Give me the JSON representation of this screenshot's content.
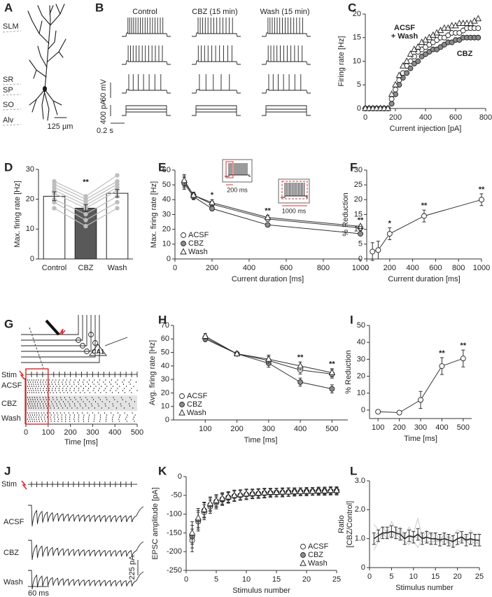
{
  "neuron": {
    "label": "A",
    "layers": [
      "SLM",
      "SR",
      "SP",
      "SO",
      "Alv"
    ],
    "scale": "125 µm"
  },
  "traces": {
    "label": "B",
    "conditions": [
      "Control",
      "CBZ (15 min)",
      "Wash (15 min)"
    ],
    "scale_voltage": "60 mV",
    "scale_current": "400 pA",
    "scale_time": "0.2 s"
  },
  "raster": {
    "label": "G",
    "stim": "Stim",
    "region": "CA1",
    "rows": [
      "ACSF",
      "CBZ",
      "Wash"
    ],
    "xlabel": "Time [ms]",
    "xlim": [
      0,
      500
    ],
    "xticks": [
      0,
      100,
      200,
      300,
      400,
      500
    ]
  },
  "epsc": {
    "label": "J",
    "stim": "Stim",
    "rows": [
      "ACSF",
      "CBZ",
      "Wash"
    ],
    "scale_current": "225 pA",
    "scale_time": "60 ms"
  },
  "chart_data": [
    {
      "label": "C",
      "type": "scatter",
      "xlabel": "Current injection [pA]",
      "ylabel": "Firing rate [Hz]",
      "xlim": [
        0,
        800
      ],
      "ylim": [
        0,
        20
      ],
      "xticks": [
        0,
        200,
        400,
        600,
        800
      ],
      "yticks": [
        0,
        5,
        10,
        15,
        20
      ],
      "x": [
        0,
        25,
        50,
        75,
        100,
        125,
        150,
        175,
        200,
        225,
        250,
        275,
        300,
        325,
        350,
        375,
        400,
        425,
        450,
        475,
        500,
        525,
        550,
        575,
        600,
        625,
        650,
        675,
        700,
        725,
        750
      ],
      "series": [
        {
          "marker": "circle-open",
          "color": "#ffffff",
          "values": [
            0,
            0,
            0,
            0,
            0,
            0,
            0,
            2,
            4,
            6,
            7.5,
            9,
            10,
            11,
            12,
            12.5,
            13,
            13.5,
            14,
            14.5,
            15,
            15,
            15.5,
            16,
            16,
            16,
            16.5,
            17,
            17,
            17,
            17
          ]
        },
        {
          "marker": "circle-filled",
          "color": "#8c8c8c",
          "values": [
            0,
            0,
            0,
            0,
            0,
            0,
            0,
            1,
            3,
            5,
            6.5,
            7.5,
            8.5,
            9.5,
            10,
            11,
            11.5,
            12,
            12.5,
            12.5,
            13,
            13.5,
            14,
            14,
            14.5,
            14.5,
            15,
            15,
            15,
            15,
            15
          ]
        },
        {
          "marker": "triangle",
          "color": "#ffffff",
          "values": [
            0,
            0,
            0,
            0,
            0,
            0,
            0,
            3,
            5,
            7,
            9,
            10,
            11.5,
            12.5,
            13,
            14,
            14.5,
            15,
            15.5,
            16,
            16.5,
            17,
            17,
            17.5,
            17.5,
            18,
            18,
            18,
            18,
            18.5,
            19
          ]
        }
      ],
      "annotations": [
        {
          "text": "ACSF"
        },
        {
          "text": "+ Wash"
        },
        {
          "text": "CBZ"
        }
      ]
    },
    {
      "label": "D",
      "type": "bar",
      "ylabel": "Max. firing rate [Hz]",
      "categories": [
        "Control",
        "CBZ",
        "Wash"
      ],
      "values": [
        21,
        17,
        22
      ],
      "errors": [
        1.5,
        1.2,
        1.3
      ],
      "colors": [
        "#ffffff",
        "#595959",
        "#ffffff"
      ],
      "ylim": [
        0,
        30
      ],
      "yticks": [
        0,
        10,
        20,
        30
      ],
      "paired": [
        {
          "color": "#bdbdbd",
          "values": [
            26,
            21,
            28
          ]
        },
        {
          "color": "#bdbdbd",
          "values": [
            25,
            20,
            26
          ]
        },
        {
          "color": "#bdbdbd",
          "values": [
            24,
            19,
            25
          ]
        },
        {
          "color": "#bdbdbd",
          "values": [
            23,
            18,
            24
          ]
        },
        {
          "color": "#bdbdbd",
          "values": [
            22,
            17,
            23
          ]
        },
        {
          "color": "#bdbdbd",
          "values": [
            20,
            15,
            21
          ]
        },
        {
          "color": "#bdbdbd",
          "values": [
            19,
            13,
            19
          ]
        },
        {
          "color": "#bdbdbd",
          "values": [
            17,
            11,
            17
          ]
        }
      ],
      "annotations": [
        {
          "text": "**",
          "at": "CBZ"
        }
      ]
    },
    {
      "label": "E",
      "type": "line",
      "xlabel": "Current duration [ms]",
      "ylabel": "Max. firing rate [Hz]",
      "xlim": [
        0,
        1000
      ],
      "ylim": [
        0,
        60
      ],
      "xticks": [
        0,
        200,
        400,
        600,
        800,
        1000
      ],
      "yticks": [
        0,
        10,
        20,
        30,
        40,
        50,
        60
      ],
      "x": [
        50,
        100,
        200,
        500,
        1000
      ],
      "legend": "bottom-left",
      "series": [
        {
          "name": "ACSF",
          "marker": "circle-open",
          "color": "#ffffff",
          "values": [
            52,
            43,
            37,
            27,
            21
          ],
          "errors": [
            4,
            2,
            2,
            1.5,
            1
          ]
        },
        {
          "name": "CBZ",
          "marker": "circle-filled",
          "color": "#8c8c8c",
          "values": [
            51,
            42,
            34,
            23,
            17
          ],
          "errors": [
            4,
            2,
            1.5,
            1,
            1
          ]
        },
        {
          "name": "Wash",
          "marker": "triangle",
          "color": "#ffffff",
          "values": [
            53,
            43,
            38,
            28,
            22
          ],
          "errors": [
            4,
            2,
            2,
            1.5,
            1
          ]
        }
      ],
      "annotations": [
        {
          "text": "*",
          "at": 200
        },
        {
          "text": "**",
          "at": 500
        },
        {
          "text": "**",
          "at": 1000
        }
      ],
      "insets": [
        "200 ms",
        "1000 ms"
      ]
    },
    {
      "label": "F",
      "type": "line",
      "xlabel": "Current duration [ms]",
      "ylabel": "% Reduction",
      "xlim": [
        0,
        1000
      ],
      "ylim": [
        0,
        30
      ],
      "xticks": [
        0,
        200,
        400,
        600,
        800,
        1000
      ],
      "yticks": [
        0,
        5,
        10,
        15,
        20,
        25,
        30
      ],
      "x": [
        50,
        100,
        200,
        500,
        1000
      ],
      "series": [
        {
          "marker": "circle-open",
          "color": "#ffffff",
          "values": [
            2.5,
            3,
            8.5,
            14.5,
            20
          ],
          "errors": [
            3,
            3,
            2,
            2,
            2
          ]
        }
      ],
      "annotations": [
        {
          "text": "*",
          "at": 200
        },
        {
          "text": "**",
          "at": 500
        },
        {
          "text": "**",
          "at": 1000
        }
      ]
    },
    {
      "label": "H",
      "type": "line",
      "xlabel": "Time [ms]",
      "ylabel": "Avg. firing rate [Hz]",
      "xlim": [
        0,
        550
      ],
      "ylim": [
        0,
        70
      ],
      "xticks": [
        100,
        200,
        300,
        400,
        500
      ],
      "yticks": [
        0,
        10,
        20,
        30,
        40,
        50,
        60,
        70
      ],
      "x": [
        100,
        200,
        300,
        400,
        500
      ],
      "legend": "bottom-left",
      "series": [
        {
          "name": "ACSF",
          "marker": "circle-open",
          "color": "#ffffff",
          "values": [
            61,
            49,
            44,
            37,
            34
          ],
          "errors": [
            2,
            1,
            3,
            3,
            3
          ]
        },
        {
          "name": "CBZ",
          "marker": "circle-filled",
          "color": "#8c8c8c",
          "values": [
            60,
            49,
            42,
            28,
            23
          ],
          "errors": [
            2,
            1,
            3,
            3,
            3
          ]
        },
        {
          "name": "Wash",
          "marker": "triangle",
          "color": "#ffffff",
          "values": [
            62,
            49,
            45,
            40,
            35
          ],
          "errors": [
            2,
            1,
            3,
            3,
            3
          ]
        }
      ],
      "annotations": [
        {
          "text": "**",
          "at": 400
        },
        {
          "text": "**",
          "at": 500
        }
      ]
    },
    {
      "label": "I",
      "type": "line",
      "xlabel": "Time [ms]",
      "ylabel": "% Reduction",
      "xlim": [
        60,
        540
      ],
      "ylim": [
        -5,
        50
      ],
      "xticks": [
        100,
        200,
        300,
        400,
        500
      ],
      "yticks": [
        0,
        10,
        20,
        30,
        40,
        50
      ],
      "x": [
        100,
        200,
        300,
        400,
        500
      ],
      "series": [
        {
          "marker": "circle-open",
          "color": "#ffffff",
          "values": [
            -1,
            -1.5,
            6,
            26,
            30.5
          ],
          "errors": [
            1,
            1,
            5,
            5,
            5
          ]
        }
      ],
      "annotations": [
        {
          "text": "**",
          "at": 400
        },
        {
          "text": "**",
          "at": 500
        }
      ]
    },
    {
      "label": "K",
      "type": "scatter",
      "xlabel": "Stimulus number",
      "ylabel": "EPSC amplitude [pA]",
      "xlim": [
        0,
        25
      ],
      "ylim": [
        -250,
        0
      ],
      "xticks": [
        0,
        5,
        10,
        15,
        20,
        25
      ],
      "yticks": [
        -250,
        -200,
        -150,
        -100,
        -50,
        0
      ],
      "x": [
        1,
        2,
        3,
        4,
        5,
        6,
        7,
        8,
        9,
        10,
        11,
        12,
        13,
        14,
        15,
        16,
        17,
        18,
        19,
        20,
        21,
        22,
        23,
        24,
        25
      ],
      "legend": "bottom-right",
      "series": [
        {
          "name": "ACSF",
          "marker": "circle-open",
          "color": "#ffffff",
          "values": [
            -170,
            -120,
            -95,
            -80,
            -70,
            -62,
            -57,
            -52,
            -50,
            -48,
            -46,
            -45,
            -44,
            -43,
            -42,
            -42,
            -41,
            -40,
            -40,
            -39,
            -39,
            -38,
            -38,
            -38,
            -37
          ],
          "errors": [
            30,
            25,
            20,
            18,
            16,
            15,
            14,
            14,
            13,
            13,
            12,
            12,
            12,
            11,
            11,
            11,
            11,
            10,
            10,
            10,
            10,
            10,
            10,
            10,
            10
          ]
        },
        {
          "name": "CBZ",
          "marker": "circle-filled",
          "color": "#8c8c8c",
          "values": [
            -160,
            -115,
            -90,
            -75,
            -66,
            -60,
            -55,
            -52,
            -50,
            -48,
            -47,
            -46,
            -45,
            -44,
            -43,
            -43,
            -42,
            -42,
            -41,
            -41,
            -40,
            -40,
            -40,
            -39,
            -39
          ],
          "errors": [
            30,
            25,
            20,
            18,
            16,
            15,
            14,
            14,
            13,
            13,
            12,
            12,
            12,
            11,
            11,
            11,
            11,
            10,
            10,
            10,
            10,
            10,
            10,
            10,
            10
          ]
        },
        {
          "name": "Wash",
          "marker": "triangle",
          "color": "#ffffff",
          "values": [
            -150,
            -110,
            -88,
            -72,
            -64,
            -58,
            -54,
            -50,
            -48,
            -46,
            -45,
            -44,
            -43,
            -42,
            -42,
            -41,
            -41,
            -40,
            -40,
            -39,
            -39,
            -38,
            -38,
            -37,
            -37
          ],
          "errors": [
            30,
            25,
            20,
            18,
            16,
            15,
            14,
            14,
            13,
            13,
            12,
            12,
            12,
            11,
            11,
            11,
            11,
            10,
            10,
            10,
            10,
            10,
            10,
            10,
            10
          ]
        }
      ]
    },
    {
      "label": "L",
      "type": "line",
      "xlabel": "Stimulus number",
      "ylabel": [
        "Ratio",
        "[CBZ/Control]"
      ],
      "xlim": [
        0,
        25
      ],
      "ylim": [
        0,
        3
      ],
      "xticks": [
        0,
        5,
        10,
        15,
        20,
        25
      ],
      "yticks": [
        0,
        {
          "value": 1,
          "label": "1.0"
        },
        {
          "value": 2,
          "label": "2.0"
        },
        {
          "value": 3,
          "label": "3.0"
        }
      ],
      "x": [
        1,
        2,
        3,
        4,
        5,
        6,
        7,
        8,
        9,
        10,
        11,
        12,
        13,
        14,
        15,
        16,
        17,
        18,
        19,
        20,
        21,
        22,
        23,
        24,
        25
      ],
      "series": [
        {
          "marker": "none",
          "color": "#c8c8c8",
          "values": [
            1.5,
            1.3,
            1.4,
            1.2,
            1.6,
            1.3,
            1.2,
            1.1,
            1.4,
            1.2,
            1.7,
            1.0,
            1.3,
            1.1,
            1.2,
            0.9,
            1.2,
            1.0,
            1.1,
            1.3,
            1.2,
            1.0,
            1.3,
            1.1,
            1.2
          ]
        },
        {
          "marker": "none",
          "color": "#c8c8c8",
          "values": [
            0.8,
            1.0,
            1.1,
            1.3,
            1.0,
            1.2,
            1.0,
            0.9,
            0.8,
            1.0,
            1.2,
            1.1,
            0.9,
            0.8,
            1.0,
            1.0,
            0.8,
            0.9,
            0.7,
            0.8,
            1.0,
            0.9,
            0.8,
            0.9,
            0.8
          ]
        },
        {
          "marker": "none",
          "color": "#c8c8c8",
          "values": [
            0.6,
            0.9,
            1.2,
            1.0,
            1.2,
            1.3,
            1.4,
            1.0,
            1.1,
            0.9,
            0.7,
            1.0,
            1.1,
            1.2,
            0.9,
            1.0,
            1.1,
            0.8,
            0.9,
            1.0,
            1.1,
            0.9,
            1.0,
            0.8,
            0.9
          ]
        },
        {
          "marker": "none",
          "color": "#c8c8c8",
          "values": [
            1.1,
            1.2,
            1.1,
            1.3,
            1.2,
            1.0,
            1.0,
            1.0,
            1.1,
            1.1,
            1.0,
            0.9,
            0.9,
            0.9,
            0.9,
            0.9,
            0.9,
            1.1,
            0.9,
            0.9,
            0.9,
            1.0,
            0.9,
            1.0,
            0.9
          ]
        },
        {
          "marker": "none",
          "color": "#1a1a1a",
          "values": [
            1.0,
            1.1,
            1.2,
            1.2,
            1.25,
            1.2,
            1.15,
            1.0,
            1.1,
            1.05,
            1.15,
            1.0,
            1.05,
            1.0,
            1.0,
            0.95,
            1.0,
            0.95,
            0.9,
            1.0,
            1.05,
            0.95,
            1.0,
            0.95,
            0.95
          ],
          "errors": [
            0.2,
            0.2,
            0.2,
            0.2,
            0.2,
            0.2,
            0.2,
            0.2,
            0.2,
            0.2,
            0.2,
            0.2,
            0.2,
            0.2,
            0.2,
            0.2,
            0.2,
            0.2,
            0.2,
            0.2,
            0.2,
            0.2,
            0.2,
            0.2,
            0.2
          ]
        }
      ]
    }
  ]
}
